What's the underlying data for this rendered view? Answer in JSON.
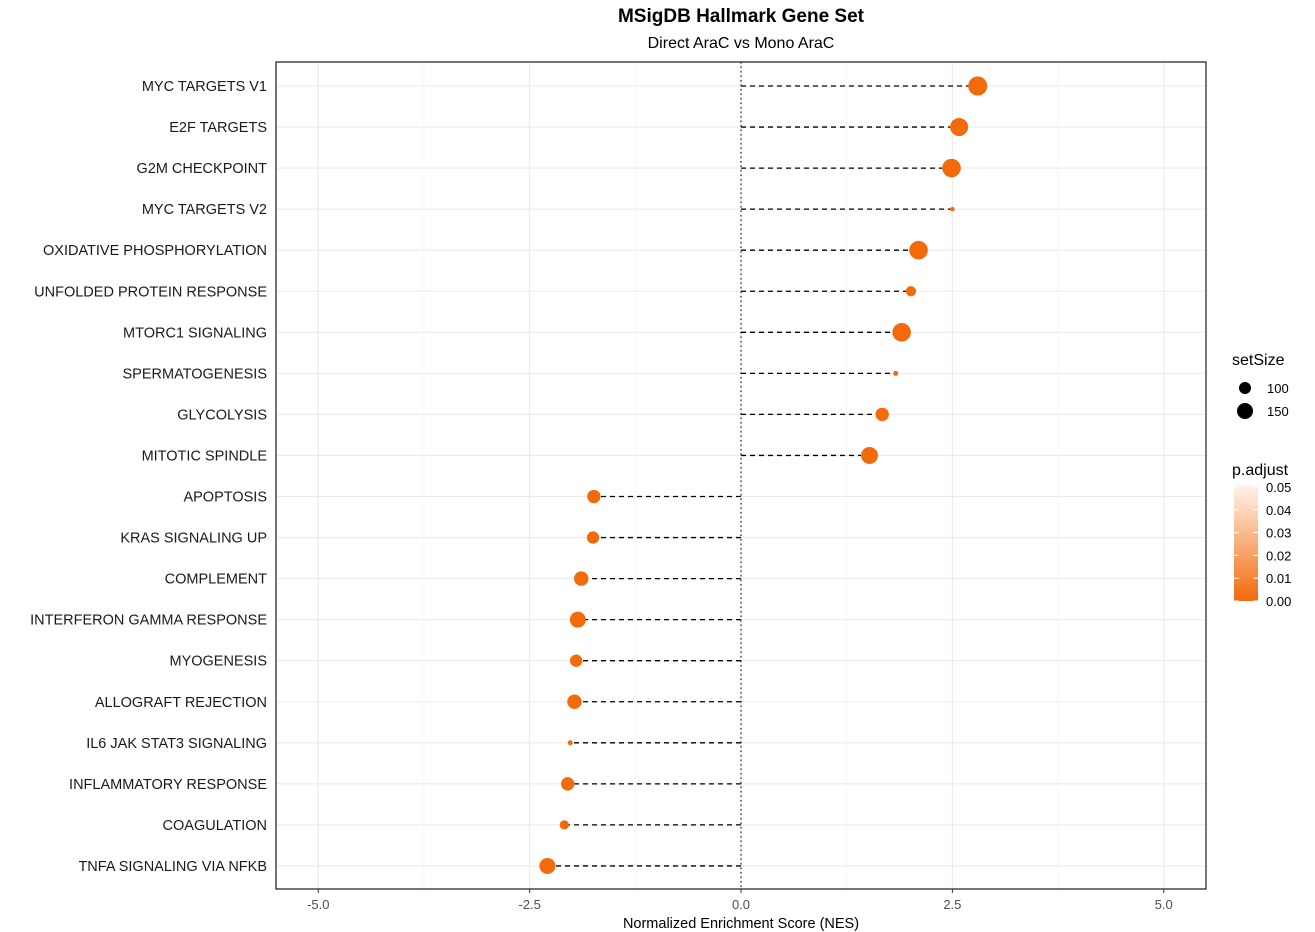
{
  "chart_data": {
    "type": "scatter",
    "title": "MSigDB Hallmark Gene Set",
    "subtitle": "Direct AraC vs Mono AraC",
    "xlabel": "Normalized Enrichment Score (NES)",
    "ylabel": "",
    "xlim": [
      -5.5,
      5.5
    ],
    "x_ticks": [
      -5.0,
      -2.5,
      0.0,
      2.5,
      5.0
    ],
    "x_tick_labels": [
      "-5.0",
      "-2.5",
      "0.0",
      "2.5",
      "5.0"
    ],
    "grid": true,
    "reference_line": 0,
    "categories": [
      "MYC TARGETS V1",
      "E2F TARGETS",
      "G2M CHECKPOINT",
      "MYC TARGETS V2",
      "OXIDATIVE PHOSPHORYLATION",
      "UNFOLDED PROTEIN RESPONSE",
      "MTORC1 SIGNALING",
      "SPERMATOGENESIS",
      "GLYCOLYSIS",
      "MITOTIC SPINDLE",
      "APOPTOSIS",
      "KRAS SIGNALING UP",
      "COMPLEMENT",
      "INTERFERON GAMMA RESPONSE",
      "MYOGENESIS",
      "ALLOGRAFT REJECTION",
      "IL6 JAK STAT3 SIGNALING",
      "INFLAMMATORY RESPONSE",
      "COAGULATION",
      "TNFA SIGNALING VIA NFKB"
    ],
    "nes": [
      2.8,
      2.58,
      2.49,
      2.5,
      2.1,
      2.01,
      1.9,
      1.83,
      1.67,
      1.52,
      -1.74,
      -1.75,
      -1.89,
      -1.93,
      -1.95,
      -1.97,
      -2.02,
      -2.05,
      -2.09,
      -2.29
    ],
    "set_size": [
      195,
      185,
      190,
      55,
      190,
      110,
      190,
      60,
      140,
      175,
      140,
      130,
      150,
      165,
      130,
      150,
      60,
      140,
      100,
      165
    ],
    "p_adjust": [
      0.0,
      0.0,
      0.0,
      0.0,
      0.0,
      0.0,
      0.0,
      0.0,
      0.0,
      0.0,
      0.0,
      0.0,
      0.0,
      0.0,
      0.0,
      0.0,
      0.0,
      0.0,
      0.0,
      0.0
    ],
    "legend_size": {
      "title": "setSize",
      "values": [
        100,
        150
      ],
      "labels": [
        "100",
        "150"
      ]
    },
    "legend_color": {
      "title": "p.adjust",
      "ticks": [
        0.05,
        0.04,
        0.03,
        0.02,
        0.01,
        0.0
      ],
      "tick_labels": [
        "0.05",
        "0.04",
        "0.03",
        "0.02",
        "0.01",
        "0.00"
      ],
      "low_color": "#f26a0a",
      "high_color": "#fff3ec"
    },
    "legend_position": "right"
  }
}
